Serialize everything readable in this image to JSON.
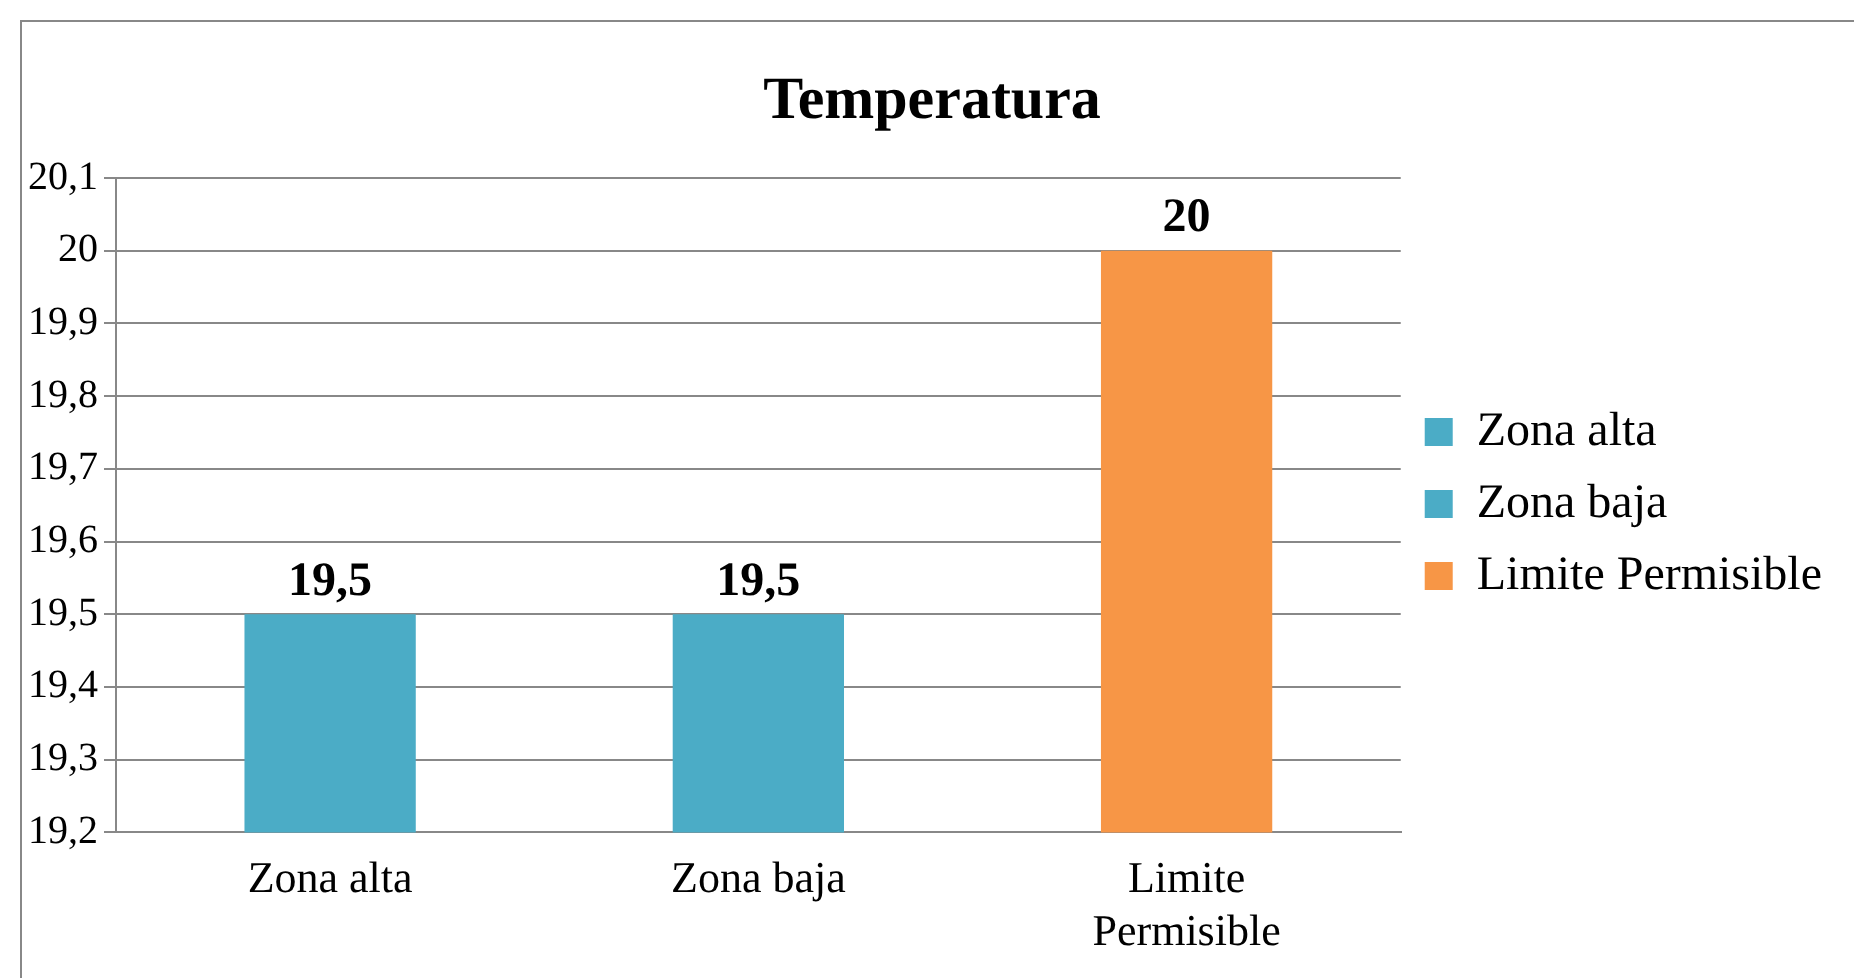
{
  "chart_data": {
    "type": "bar",
    "title": "Temperatura",
    "categories": [
      "Zona alta",
      "Zona baja",
      "Limite Permisible"
    ],
    "series": [
      {
        "name": "Zona alta",
        "color": "#4bacc6",
        "values": [
          19.5,
          null,
          null
        ],
        "value_labels": [
          "19,5",
          null,
          null
        ]
      },
      {
        "name": "Zona baja",
        "color": "#4bacc6",
        "values": [
          null,
          19.5,
          null
        ],
        "value_labels": [
          null,
          "19,5",
          null
        ]
      },
      {
        "name": "Limite Permisible",
        "color": "#f79646",
        "values": [
          null,
          null,
          20
        ],
        "value_labels": [
          null,
          null,
          "20"
        ]
      }
    ],
    "ylim": [
      19.2,
      20.1
    ],
    "yticks": [
      {
        "value": 19.2,
        "label": "19,2"
      },
      {
        "value": 19.3,
        "label": "19,3"
      },
      {
        "value": 19.4,
        "label": "19,4"
      },
      {
        "value": 19.5,
        "label": "19,5"
      },
      {
        "value": 19.6,
        "label": "19,6"
      },
      {
        "value": 19.7,
        "label": "19,7"
      },
      {
        "value": 19.8,
        "label": "19,8"
      },
      {
        "value": 19.9,
        "label": "19,9"
      },
      20,
      {
        "value": 20.1,
        "label": "20,1"
      }
    ],
    "grid": "y",
    "legend": "right"
  }
}
